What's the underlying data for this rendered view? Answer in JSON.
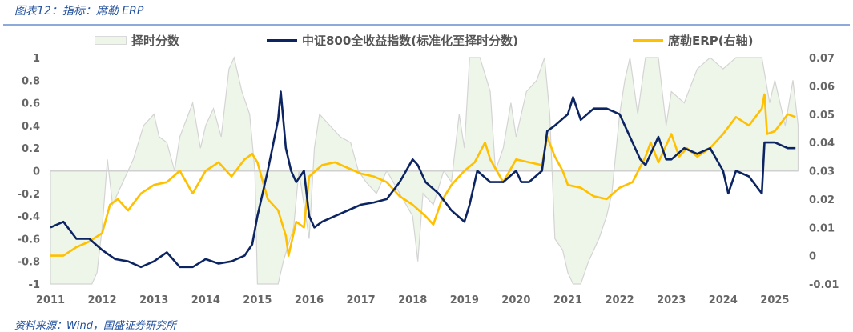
{
  "title": "图表12：指标：席勒 ERP",
  "source": "资料来源：Wind，国盛证券研究所",
  "colors": {
    "score_fill": "#eef6ea",
    "score_stroke": "#d4d4d4",
    "index": "#0c2461",
    "erp": "#ffc000",
    "axis_text": "#666666"
  },
  "chart_data": {
    "type": "line",
    "x_ticks": [
      "2011",
      "2012",
      "2013",
      "2014",
      "2015",
      "2016",
      "2017",
      "2018",
      "2019",
      "2020",
      "2021",
      "2022",
      "2023",
      "2024",
      "2025"
    ],
    "y_left": {
      "range": [
        -1,
        1
      ],
      "ticks": [
        "1",
        "0.8",
        "0.6",
        "0.4",
        "0.2",
        "0",
        "-0.2",
        "-0.4",
        "-0.6",
        "-0.8",
        "-1"
      ]
    },
    "y_right": {
      "range": [
        -0.01,
        0.07
      ],
      "ticks": [
        "0.07",
        "0.06",
        "0.05",
        "0.04",
        "0.03",
        "0.02",
        "0.01",
        "0",
        "-0.01"
      ]
    },
    "legend_position": "top",
    "series": [
      {
        "name": "择时分数",
        "kind": "area",
        "axis": "left",
        "x": [
          2011.0,
          2011.8,
          2011.9,
          2012.0,
          2012.1,
          2012.2,
          2012.4,
          2012.6,
          2012.8,
          2013.0,
          2013.1,
          2013.25,
          2013.4,
          2013.5,
          2013.75,
          2013.9,
          2014.0,
          2014.15,
          2014.3,
          2014.45,
          2014.55,
          2014.7,
          2014.85,
          2014.95,
          2015.0,
          2015.4,
          2015.5,
          2015.7,
          2015.8,
          2016.0,
          2016.1,
          2016.2,
          2016.4,
          2016.6,
          2016.8,
          2016.95,
          2017.1,
          2017.3,
          2017.5,
          2017.75,
          2018.0,
          2018.1,
          2018.2,
          2018.4,
          2018.6,
          2018.75,
          2018.9,
          2019.0,
          2019.1,
          2019.3,
          2019.5,
          2019.6,
          2019.75,
          2019.9,
          2020.0,
          2020.2,
          2020.4,
          2020.55,
          2020.65,
          2020.75,
          2020.9,
          2021.0,
          2021.1,
          2021.25,
          2021.4,
          2021.6,
          2021.75,
          2021.85,
          2022.0,
          2022.1,
          2022.2,
          2022.35,
          2022.5,
          2022.75,
          2022.9,
          2023.0,
          2023.25,
          2023.5,
          2023.75,
          2024.0,
          2024.25,
          2024.5,
          2024.75,
          2024.9,
          2025.0,
          2025.2,
          2025.35,
          2025.45
        ],
        "values": [
          -1,
          -1,
          -0.9,
          -0.5,
          0.1,
          -0.3,
          -0.1,
          0.1,
          0.4,
          0.5,
          0.3,
          0.25,
          0.0,
          0.3,
          0.6,
          0.2,
          0.4,
          0.55,
          0.3,
          0.9,
          1.0,
          0.7,
          0.5,
          0.0,
          -1,
          -1,
          -0.8,
          -0.5,
          0.0,
          -0.6,
          0.2,
          0.5,
          0.4,
          0.3,
          0.25,
          0.0,
          -0.1,
          -0.2,
          0.0,
          -0.2,
          -0.4,
          -0.8,
          -0.2,
          -0.3,
          0.0,
          -0.1,
          0.5,
          0.2,
          1.0,
          1.0,
          0.7,
          0.0,
          0.2,
          0.6,
          0.3,
          0.7,
          0.8,
          1.0,
          0.5,
          -0.6,
          -0.7,
          -0.9,
          -1.0,
          -1.0,
          -0.8,
          -0.6,
          -0.4,
          -0.2,
          0.5,
          0.8,
          1.0,
          0.5,
          1.0,
          1.0,
          0.4,
          0.7,
          0.6,
          0.9,
          1.0,
          0.9,
          1.0,
          1.0,
          1.0,
          0.6,
          0.8,
          0.4,
          0.8,
          0.4
        ]
      },
      {
        "name": "中证800全收益指数(标准化至择时分数)",
        "kind": "line",
        "axis": "left",
        "x": [
          2011.0,
          2011.25,
          2011.5,
          2011.75,
          2012.0,
          2012.25,
          2012.5,
          2012.75,
          2013.0,
          2013.25,
          2013.5,
          2013.75,
          2014.0,
          2014.25,
          2014.5,
          2014.75,
          2014.9,
          2015.0,
          2015.2,
          2015.4,
          2015.45,
          2015.55,
          2015.65,
          2015.75,
          2015.9,
          2016.0,
          2016.1,
          2016.25,
          2016.5,
          2016.75,
          2017.0,
          2017.25,
          2017.5,
          2017.75,
          2018.0,
          2018.1,
          2018.25,
          2018.5,
          2018.75,
          2019.0,
          2019.1,
          2019.25,
          2019.5,
          2019.75,
          2020.0,
          2020.1,
          2020.25,
          2020.5,
          2020.6,
          2020.75,
          2021.0,
          2021.1,
          2021.25,
          2021.5,
          2021.75,
          2022.0,
          2022.2,
          2022.4,
          2022.5,
          2022.75,
          2022.9,
          2023.0,
          2023.25,
          2023.5,
          2023.75,
          2024.0,
          2024.1,
          2024.25,
          2024.5,
          2024.75,
          2024.8,
          2025.0,
          2025.25,
          2025.4
        ],
        "values": [
          -0.5,
          -0.45,
          -0.6,
          -0.6,
          -0.7,
          -0.78,
          -0.8,
          -0.85,
          -0.8,
          -0.72,
          -0.85,
          -0.85,
          -0.78,
          -0.82,
          -0.8,
          -0.75,
          -0.65,
          -0.4,
          0.0,
          0.45,
          0.7,
          0.2,
          0.0,
          -0.1,
          0.0,
          -0.4,
          -0.5,
          -0.45,
          -0.4,
          -0.35,
          -0.3,
          -0.28,
          -0.25,
          -0.1,
          0.1,
          0.05,
          -0.1,
          -0.2,
          -0.35,
          -0.45,
          -0.3,
          0.0,
          -0.1,
          -0.1,
          0.0,
          -0.1,
          -0.1,
          0.0,
          0.35,
          0.4,
          0.5,
          0.65,
          0.45,
          0.55,
          0.55,
          0.5,
          0.3,
          0.1,
          0.05,
          0.3,
          0.1,
          0.1,
          0.2,
          0.15,
          0.2,
          0.0,
          -0.2,
          0.0,
          -0.05,
          -0.2,
          0.25,
          0.25,
          0.2,
          0.2
        ]
      },
      {
        "name": "席勒ERP(右轴)",
        "kind": "line",
        "axis": "right",
        "x": [
          2011.0,
          2011.25,
          2011.5,
          2011.75,
          2012.0,
          2012.15,
          2012.3,
          2012.5,
          2012.75,
          2013.0,
          2013.25,
          2013.5,
          2013.75,
          2014.0,
          2014.25,
          2014.5,
          2014.75,
          2014.9,
          2015.0,
          2015.2,
          2015.4,
          2015.55,
          2015.6,
          2015.75,
          2015.9,
          2016.0,
          2016.25,
          2016.5,
          2016.75,
          2017.0,
          2017.25,
          2017.5,
          2017.75,
          2018.0,
          2018.25,
          2018.4,
          2018.55,
          2018.75,
          2019.0,
          2019.2,
          2019.4,
          2019.5,
          2019.75,
          2020.0,
          2020.25,
          2020.5,
          2020.6,
          2020.75,
          2020.9,
          2021.0,
          2021.25,
          2021.5,
          2021.75,
          2022.0,
          2022.25,
          2022.5,
          2022.6,
          2022.75,
          2023.0,
          2023.15,
          2023.3,
          2023.5,
          2023.75,
          2024.0,
          2024.25,
          2024.5,
          2024.75,
          2024.8,
          2024.85,
          2025.0,
          2025.25,
          2025.4
        ],
        "values": [
          0.0,
          0.0,
          0.003,
          0.005,
          0.008,
          0.018,
          0.02,
          0.016,
          0.022,
          0.025,
          0.026,
          0.03,
          0.022,
          0.03,
          0.033,
          0.028,
          0.034,
          0.036,
          0.033,
          0.02,
          0.016,
          0.007,
          0.0,
          0.012,
          0.01,
          0.028,
          0.032,
          0.033,
          0.031,
          0.029,
          0.028,
          0.026,
          0.021,
          0.018,
          0.014,
          0.011,
          0.019,
          0.025,
          0.03,
          0.033,
          0.04,
          0.034,
          0.026,
          0.034,
          0.033,
          0.032,
          0.042,
          0.035,
          0.03,
          0.025,
          0.024,
          0.021,
          0.02,
          0.024,
          0.026,
          0.035,
          0.04,
          0.033,
          0.043,
          0.035,
          0.038,
          0.035,
          0.038,
          0.043,
          0.049,
          0.046,
          0.052,
          0.057,
          0.043,
          0.044,
          0.05,
          0.049
        ]
      }
    ]
  }
}
